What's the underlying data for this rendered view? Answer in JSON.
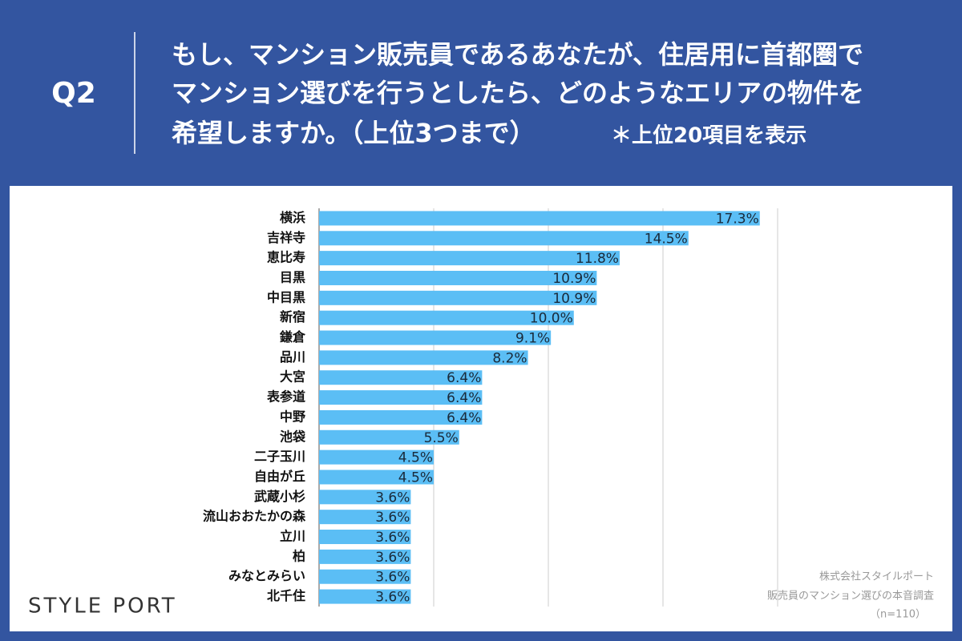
{
  "header": {
    "label": "Q2",
    "question": [
      "もし、マンション販売員であるあなたが、住居用に首都圏で",
      "マンション選びを行うとしたら、どのようなエリアの物件を",
      "希望しますか。（上位3つまで）"
    ],
    "note": "＊上位20項目を表示"
  },
  "chart_data": {
    "type": "hbar",
    "categories": [
      "横浜",
      "吉祥寺",
      "恵比寿",
      "目黒",
      "中目黒",
      "新宿",
      "鎌倉",
      "品川",
      "大宮",
      "表参道",
      "中野",
      "池袋",
      "二子玉川",
      "自由が丘",
      "武蔵小杉",
      "流山おおたかの森",
      "立川",
      "柏",
      "みなとみらい",
      "北千住"
    ],
    "values": [
      17.3,
      14.5,
      11.8,
      10.9,
      10.9,
      10.0,
      9.1,
      8.2,
      6.4,
      6.4,
      6.4,
      5.5,
      4.5,
      4.5,
      3.6,
      3.6,
      3.6,
      3.6,
      3.6,
      3.6
    ],
    "value_labels": [
      "17.3%",
      "14.5%",
      "11.8%",
      "10.9%",
      "10.9%",
      "10.0%",
      "9.1%",
      "8.2%",
      "6.4%",
      "6.4%",
      "6.4%",
      "5.5%",
      "4.5%",
      "4.5%",
      "3.6%",
      "3.6%",
      "3.6%",
      "3.6%",
      "3.6%",
      "3.6%"
    ],
    "color": "#5bbef5",
    "xlim": [
      0,
      18
    ],
    "xticks": [
      0,
      4.5,
      9,
      13.5,
      18
    ],
    "grid": true
  },
  "logo": "STYLE PORT",
  "source": [
    "株式会社スタイルポート",
    "販売員のマンション選びの本音調査",
    "（n=110）"
  ]
}
